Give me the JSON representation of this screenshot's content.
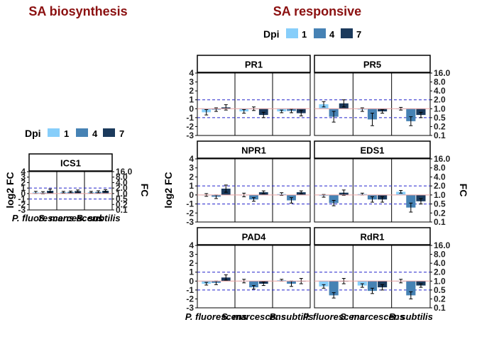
{
  "colors": {
    "dpi_1": "#87CEFA",
    "dpi_4": "#4682B4",
    "dpi_7": "#1B3A5C",
    "title": "#8B1010",
    "ref_line": "#E8A0A0",
    "threshold": "#2222CC"
  },
  "chart_data": [
    {
      "type": "bar",
      "title": "SA biosynthesis",
      "legend_title": "Dpi",
      "legend_position": "top",
      "series_names": [
        "1",
        "4",
        "7"
      ],
      "ylabel_left": "log2 FC",
      "ylabel_right": "FC",
      "ylim": [
        -3,
        4
      ],
      "y_ticks": [
        -3,
        -2,
        -1,
        0,
        1,
        2,
        3,
        4
      ],
      "right_ticks": [
        "0.1",
        "0.2",
        "0.5",
        "1.0",
        "2.0",
        "4.0",
        "8.0",
        "16.0"
      ],
      "threshold_lines": [
        1,
        -1
      ],
      "x_groups": [
        "P. fluorescens",
        "S. marcescens",
        "B. subtilis"
      ],
      "panels": [
        {
          "name": "ICS1",
          "groups": [
            {
              "values": [
                0.2,
                0.15,
                0.5
              ],
              "errors": [
                0.2,
                0.2,
                0.3
              ]
            },
            {
              "values": [
                0.25,
                0.3,
                0.45
              ],
              "errors": [
                0.15,
                0.15,
                0.2
              ]
            },
            {
              "values": [
                0.25,
                0.3,
                0.5
              ],
              "errors": [
                0.15,
                0.2,
                0.2
              ]
            }
          ]
        }
      ]
    },
    {
      "type": "bar",
      "title": "SA responsive",
      "legend_title": "Dpi",
      "legend_position": "top",
      "series_names": [
        "1",
        "4",
        "7"
      ],
      "ylabel_left": "log2 FC",
      "ylabel_right": "FC",
      "ylim": [
        -3,
        4
      ],
      "y_ticks": [
        -3,
        -2,
        -1,
        0,
        1,
        2,
        3,
        4
      ],
      "right_ticks": [
        "0.1",
        "0.2",
        "0.5",
        "1.0",
        "2.0",
        "4.0",
        "8.0",
        "16.0"
      ],
      "threshold_lines": [
        1,
        -1
      ],
      "x_groups": [
        "P. fluorescens",
        "S. marcescens",
        "B. subtilis"
      ],
      "panels": [
        {
          "name": "PR1",
          "groups": [
            {
              "values": [
                -0.4,
                -0.1,
                0.15
              ],
              "errors": [
                0.3,
                0.2,
                0.3
              ]
            },
            {
              "values": [
                -0.3,
                0.0,
                -0.7
              ],
              "errors": [
                0.2,
                0.2,
                0.3
              ]
            },
            {
              "values": [
                -0.3,
                -0.25,
                -0.5
              ],
              "errors": [
                0.15,
                0.2,
                0.3
              ]
            }
          ]
        },
        {
          "name": "PR5",
          "groups": [
            {
              "values": [
                0.5,
                -0.9,
                0.6
              ],
              "errors": [
                0.3,
                0.6,
                0.4
              ]
            },
            {
              "values": [
                -0.1,
                -1.2,
                -0.3
              ],
              "errors": [
                0.2,
                0.7,
                0.2
              ]
            },
            {
              "values": [
                0.0,
                -1.4,
                -0.7
              ],
              "errors": [
                0.15,
                0.5,
                0.3
              ]
            }
          ]
        },
        {
          "name": "NPR1",
          "groups": [
            {
              "values": [
                0.0,
                -0.2,
                0.7
              ],
              "errors": [
                0.15,
                0.2,
                0.4
              ]
            },
            {
              "values": [
                0.0,
                -0.5,
                0.3
              ],
              "errors": [
                0.2,
                0.2,
                0.15
              ]
            },
            {
              "values": [
                0.1,
                -0.6,
                0.3
              ],
              "errors": [
                0.15,
                0.3,
                0.15
              ]
            }
          ]
        },
        {
          "name": "EDS1",
          "groups": [
            {
              "values": [
                -0.1,
                -0.9,
                0.25
              ],
              "errors": [
                0.15,
                0.3,
                0.3
              ]
            },
            {
              "values": [
                0.1,
                -0.5,
                -0.5
              ],
              "errors": [
                0.1,
                0.3,
                0.3
              ]
            },
            {
              "values": [
                0.35,
                -1.4,
                -0.7
              ],
              "errors": [
                0.15,
                0.5,
                0.3
              ]
            }
          ]
        },
        {
          "name": "PAD4",
          "groups": [
            {
              "values": [
                -0.3,
                -0.2,
                0.4
              ],
              "errors": [
                0.15,
                0.2,
                0.3
              ]
            },
            {
              "values": [
                0.0,
                -0.7,
                -0.3
              ],
              "errors": [
                0.2,
                0.2,
                0.2
              ]
            },
            {
              "values": [
                0.1,
                -0.3,
                0.0
              ],
              "errors": [
                0.1,
                0.3,
                0.3
              ]
            }
          ]
        },
        {
          "name": "RdR1",
          "groups": [
            {
              "values": [
                -0.6,
                -1.6,
                0.0
              ],
              "errors": [
                0.2,
                0.3,
                0.3
              ]
            },
            {
              "values": [
                -0.5,
                -1.1,
                -0.7
              ],
              "errors": [
                0.2,
                0.3,
                0.3
              ]
            },
            {
              "values": [
                0.0,
                -1.6,
                -0.5
              ],
              "errors": [
                0.2,
                0.4,
                0.2
              ]
            }
          ]
        }
      ]
    }
  ]
}
